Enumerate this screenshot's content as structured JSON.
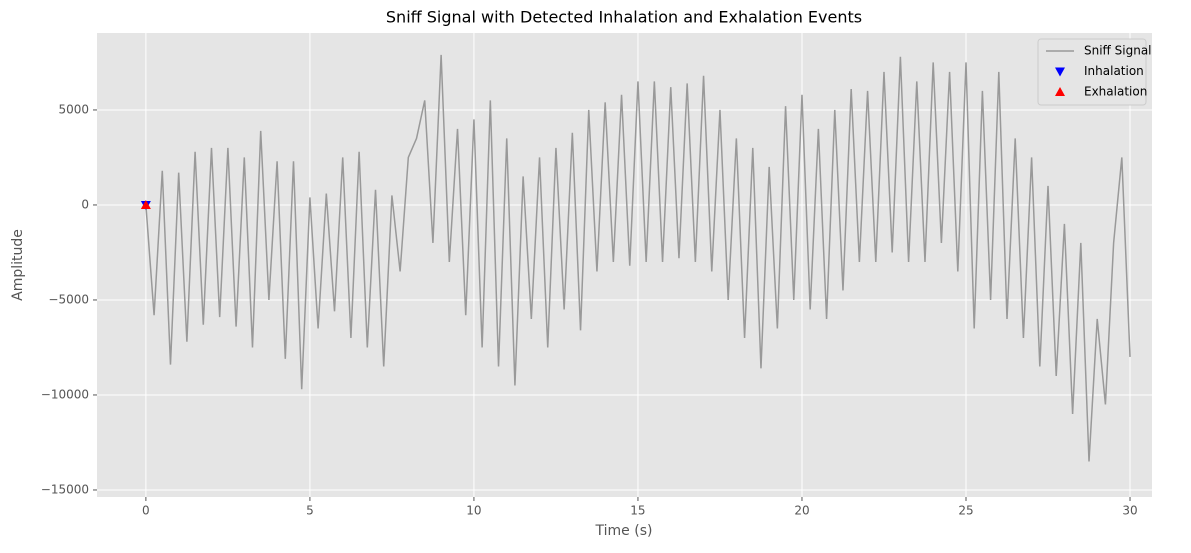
{
  "chart_data": {
    "type": "line",
    "title": "Sniff Signal with Detected Inhalation and Exhalation Events",
    "x_label": "Time (s)",
    "y_label": "Amplitude",
    "xlim": [
      -1.49,
      30.67
    ],
    "ylim": [
      -15370,
      9050
    ],
    "xticks": [
      0,
      5,
      10,
      15,
      20,
      25,
      30
    ],
    "yticks": [
      {
        "value": -15000,
        "label": "−15000"
      },
      {
        "value": -10000,
        "label": "−10000"
      },
      {
        "value": -5000,
        "label": "−5000"
      },
      0,
      5000
    ],
    "grid": true,
    "legend": "upper right",
    "series": [
      {
        "name": "Sniff Signal",
        "type": "line",
        "color": "#999999",
        "x": [
          0,
          0.25,
          0.5,
          0.75,
          1,
          1.25,
          1.5,
          1.75,
          2,
          2.25,
          2.5,
          2.75,
          3,
          3.25,
          3.5,
          3.75,
          4,
          4.25,
          4.5,
          4.75,
          5,
          5.25,
          5.5,
          5.75,
          6,
          6.25,
          6.5,
          6.75,
          7,
          7.25,
          7.5,
          7.75,
          8,
          8.25,
          8.5,
          8.75,
          9,
          9.25,
          9.5,
          9.75,
          10,
          10.25,
          10.5,
          10.75,
          11,
          11.25,
          11.5,
          11.75,
          12,
          12.25,
          12.5,
          12.75,
          13,
          13.25,
          13.5,
          13.75,
          14,
          14.25,
          14.5,
          14.75,
          15,
          15.25,
          15.5,
          15.75,
          16,
          16.25,
          16.5,
          16.75,
          17,
          17.25,
          17.5,
          17.75,
          18,
          18.25,
          18.5,
          18.75,
          19,
          19.25,
          19.5,
          19.75,
          20,
          20.25,
          20.5,
          20.75,
          21,
          21.25,
          21.5,
          21.75,
          22,
          22.25,
          22.5,
          22.75,
          23,
          23.25,
          23.5,
          23.75,
          24,
          24.25,
          24.5,
          24.75,
          25,
          25.25,
          25.5,
          25.75,
          26,
          26.25,
          26.5,
          26.75,
          27,
          27.25,
          27.5,
          27.75,
          28,
          28.25,
          28.5,
          28.75,
          29,
          29.25,
          29.5,
          29.75,
          30
        ],
        "y": [
          0,
          -5800,
          1800,
          -8400,
          1700,
          -7200,
          2800,
          -6300,
          3000,
          -5900,
          3000,
          -6400,
          2500,
          -7500,
          3900,
          -5000,
          2300,
          -8100,
          2300,
          -9700,
          400,
          -6500,
          600,
          -5600,
          2500,
          -7000,
          2800,
          -7500,
          800,
          -8500,
          500,
          -3500,
          2500,
          3500,
          5500,
          -2000,
          7900,
          -3000,
          4000,
          -5800,
          4500,
          -7500,
          5500,
          -8500,
          3500,
          -9500,
          1500,
          -6000,
          2500,
          -7500,
          3000,
          -5500,
          3800,
          -6600,
          5000,
          -3500,
          5400,
          -3000,
          5800,
          -3200,
          6500,
          -3000,
          6500,
          -3000,
          6200,
          -2800,
          6400,
          -3000,
          6800,
          -3500,
          5000,
          -5000,
          3500,
          -7000,
          3000,
          -8600,
          2000,
          -6500,
          5200,
          -5000,
          5800,
          -5500,
          4000,
          -6000,
          5000,
          -4500,
          6100,
          -3000,
          6000,
          -3000,
          7000,
          -2500,
          7800,
          -3000,
          6500,
          -3000,
          7500,
          -2000,
          7000,
          -3500,
          7500,
          -6500,
          6000,
          -5000,
          7000,
          -6000,
          3500,
          -7000,
          2500,
          -8500,
          1000,
          -9000,
          -1000,
          -11000,
          -2000,
          -13500,
          -6000,
          -10500,
          -2000,
          2500,
          -8000
        ]
      },
      {
        "name": "Inhalation",
        "type": "scatter",
        "marker": "v",
        "color": "#0000ff",
        "x": [
          0
        ],
        "y": [
          0
        ]
      },
      {
        "name": "Exhalation",
        "type": "scatter",
        "marker": "^",
        "color": "#ff0000",
        "x": [
          0
        ],
        "y": [
          0
        ]
      }
    ]
  }
}
